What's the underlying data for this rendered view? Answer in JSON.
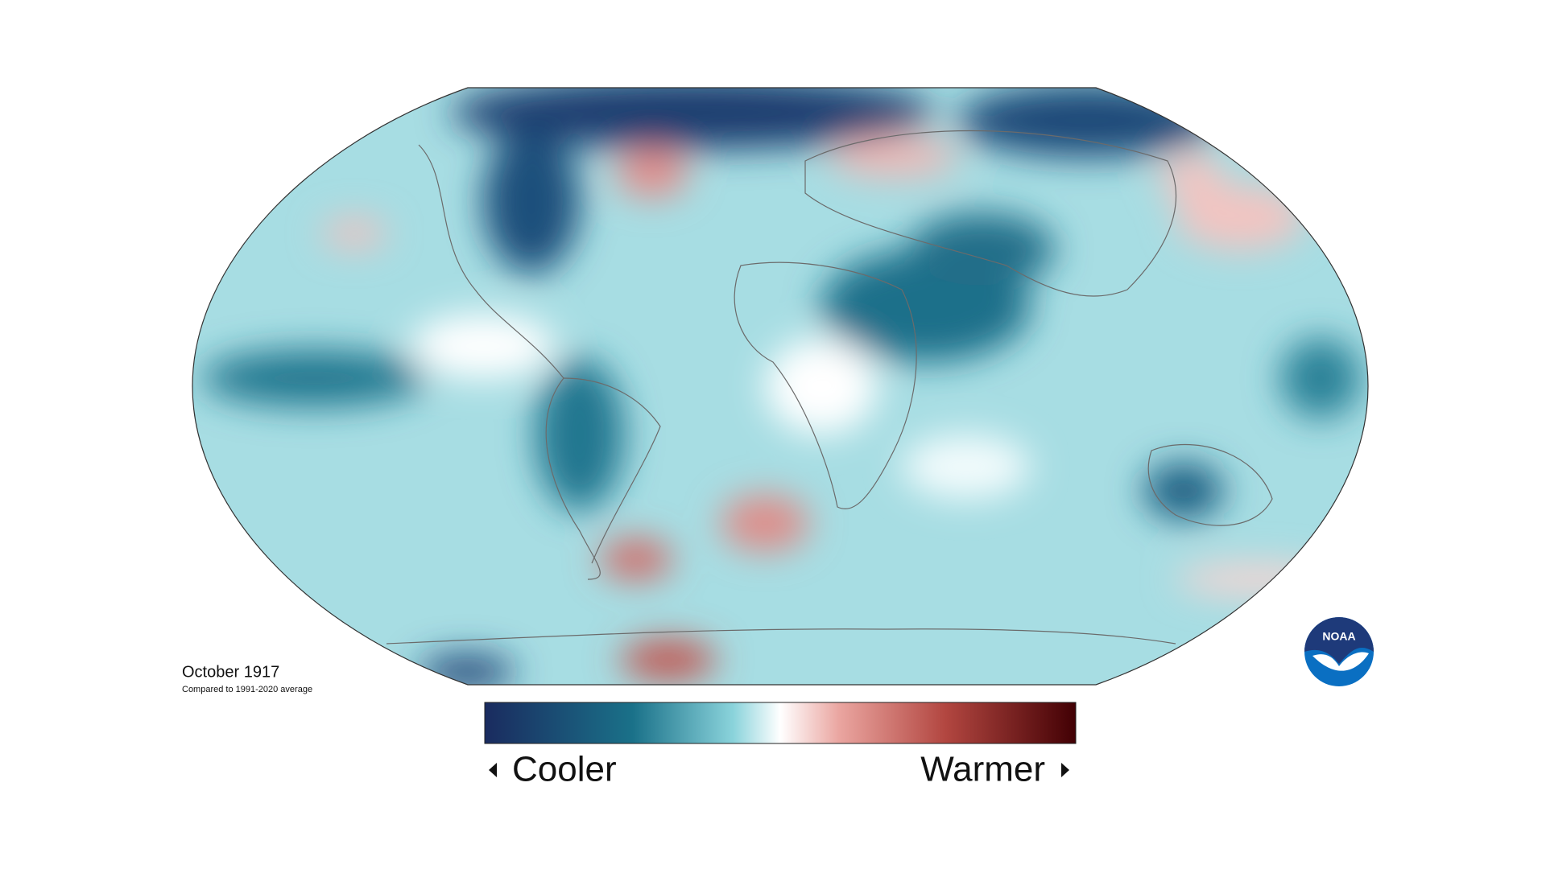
{
  "title": "October 1917",
  "subtitle": "Compared to 1991-2020 average",
  "legend": {
    "low": "Cooler",
    "high": "Warmer"
  },
  "logo": "NOAA"
}
